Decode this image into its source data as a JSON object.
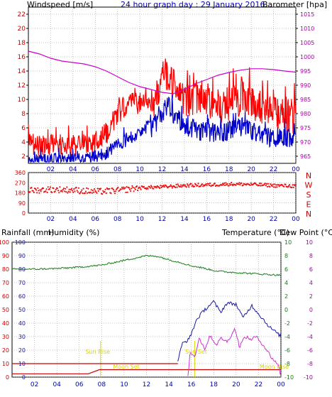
{
  "header": {
    "windspeed_label": "Windspeed [m/s]",
    "title": "24 hour graph day : 29 January 2016",
    "barometer_label": "Barometer [hpa]"
  },
  "colors": {
    "windspeed": "#ff0000",
    "wind_avg": "#0000cc",
    "barometer": "#cc00cc",
    "direction": "#ee1111",
    "humidity": "#1a1aa0",
    "rainfall": "#cc0000",
    "temperature": "#1a7a1a",
    "dew_point": "#cc33cc",
    "sun_marker": "#d8d800",
    "grid": "#888888"
  },
  "chart_data": [
    {
      "type": "line",
      "name": "wind-barometer",
      "x_ticks": [
        "02",
        "04",
        "06",
        "08",
        "10",
        "12",
        "14",
        "16",
        "18",
        "20",
        "22",
        "00"
      ],
      "y_left_label": "Windspeed [m/s]",
      "y_left_ticks": [
        "2",
        "4",
        "6",
        "8",
        "10",
        "12",
        "14",
        "16",
        "18",
        "20",
        "22"
      ],
      "y_left_range": [
        1,
        23
      ],
      "y_right_label": "Barometer [hpa]",
      "y_right_ticks": [
        "965",
        "970",
        "975",
        "980",
        "985",
        "990",
        "995",
        "1000",
        "1005",
        "1010",
        "1015"
      ],
      "y_right_range": [
        962.5,
        1017.5
      ],
      "x_range": [
        0,
        24
      ],
      "gust_envelope": [
        [
          0,
          5.5
        ],
        [
          1,
          5
        ],
        [
          2,
          5
        ],
        [
          3,
          5.3
        ],
        [
          4,
          5
        ],
        [
          5,
          5.2
        ],
        [
          6,
          5.5
        ],
        [
          7,
          6.8
        ],
        [
          8,
          9.8
        ],
        [
          9,
          10.8
        ],
        [
          10,
          11.2
        ],
        [
          11,
          11.8
        ],
        [
          11.8,
          14.5
        ],
        [
          12.3,
          16.5
        ],
        [
          13,
          15
        ],
        [
          14,
          12.6
        ],
        [
          15,
          12.8
        ],
        [
          16,
          12
        ],
        [
          17,
          11.5
        ],
        [
          18,
          12
        ],
        [
          19,
          12.5
        ],
        [
          20,
          12.6
        ],
        [
          21,
          11
        ],
        [
          22,
          10.8
        ],
        [
          23,
          10.5
        ],
        [
          24,
          10
        ]
      ],
      "avg_envelope": [
        [
          0,
          2.3
        ],
        [
          1,
          2.5
        ],
        [
          2,
          2.4
        ],
        [
          3,
          2.5
        ],
        [
          4,
          2.3
        ],
        [
          5,
          2.5
        ],
        [
          6,
          2.9
        ],
        [
          7,
          3.4
        ],
        [
          8,
          4.5
        ],
        [
          9,
          5.3
        ],
        [
          10,
          6.2
        ],
        [
          11,
          7.4
        ],
        [
          12,
          9
        ],
        [
          12.5,
          11
        ],
        [
          13,
          9.5
        ],
        [
          14,
          7.5
        ],
        [
          15,
          7.2
        ],
        [
          16,
          6.8
        ],
        [
          17,
          6.8
        ],
        [
          18,
          7
        ],
        [
          19,
          7.5
        ],
        [
          20,
          7.2
        ],
        [
          21,
          6.2
        ],
        [
          22,
          6
        ],
        [
          23,
          6.2
        ],
        [
          24,
          5.8
        ]
      ],
      "barometer_hpa": [
        [
          0,
          1002
        ],
        [
          1,
          1001
        ],
        [
          2,
          999.5
        ],
        [
          3,
          998.5
        ],
        [
          4,
          998
        ],
        [
          5,
          997.5
        ],
        [
          6,
          996.5
        ],
        [
          7,
          995
        ],
        [
          8,
          993
        ],
        [
          9,
          991
        ],
        [
          10,
          989.5
        ],
        [
          11,
          988.5
        ],
        [
          12,
          987.5
        ],
        [
          13,
          987
        ],
        [
          14,
          988.5
        ],
        [
          15,
          990.5
        ],
        [
          16,
          992
        ],
        [
          17,
          993.5
        ],
        [
          18,
          994.5
        ],
        [
          19,
          995.3
        ],
        [
          20,
          995.8
        ],
        [
          21,
          995.8
        ],
        [
          22,
          995.5
        ],
        [
          23,
          995
        ],
        [
          24,
          994.6
        ]
      ]
    },
    {
      "type": "scatter",
      "name": "wind-direction",
      "x_ticks": [
        "02",
        "04",
        "06",
        "08",
        "10",
        "12",
        "14",
        "16",
        "18",
        "20",
        "22",
        "00"
      ],
      "y_ticks": [
        "0",
        "90",
        "180",
        "270",
        "360"
      ],
      "y_range": [
        0,
        360
      ],
      "y_right_labels": [
        "N",
        "W",
        "S",
        "E",
        "N"
      ],
      "x_range": [
        0,
        24
      ],
      "direction_trend_deg": [
        [
          0,
          200
        ],
        [
          2,
          210
        ],
        [
          4,
          205
        ],
        [
          6,
          190
        ],
        [
          8,
          200
        ],
        [
          10,
          225
        ],
        [
          12,
          232
        ],
        [
          14,
          245
        ],
        [
          16,
          250
        ],
        [
          18,
          258
        ],
        [
          20,
          255
        ],
        [
          22,
          245
        ],
        [
          24,
          240
        ]
      ]
    },
    {
      "type": "line",
      "name": "rain-humidity-temperature",
      "x_ticks": [
        "02",
        "04",
        "06",
        "08",
        "10",
        "12",
        "14",
        "16",
        "18",
        "20",
        "22",
        "00"
      ],
      "rainfall_label": "Rainfall (mm)",
      "humidity_label": "Humidity (%)",
      "temperature_label": "Temperature (°C)",
      "dew_point_label": "Dew Point (°C)",
      "y_left_ticks": [
        "0",
        "10",
        "20",
        "30",
        "40",
        "50",
        "60",
        "70",
        "80",
        "90",
        "100"
      ],
      "y_left_range": [
        0,
        100
      ],
      "y_right_ticks": [
        "-10",
        "-8",
        "-6",
        "-4",
        "-2",
        "0",
        "2",
        "4",
        "6",
        "8",
        "10"
      ],
      "y_right_range": [
        -10,
        10
      ],
      "x_range": [
        0,
        24
      ],
      "temperature_c": [
        [
          0,
          6
        ],
        [
          2,
          6
        ],
        [
          4,
          6.1
        ],
        [
          6,
          6.3
        ],
        [
          8,
          6.6
        ],
        [
          10,
          7.3
        ],
        [
          12,
          8
        ],
        [
          13,
          7.9
        ],
        [
          14,
          7.4
        ],
        [
          15,
          7
        ],
        [
          16,
          6.5
        ],
        [
          17,
          6.2
        ],
        [
          18,
          5.8
        ],
        [
          19,
          5.6
        ],
        [
          20,
          5.5
        ],
        [
          21,
          5.4
        ],
        [
          22,
          5.3
        ],
        [
          23,
          5.2
        ],
        [
          24,
          5.1
        ]
      ],
      "humidity_pct": [
        [
          14.8,
          12
        ],
        [
          15.2,
          25
        ],
        [
          15.8,
          28
        ],
        [
          16.5,
          43
        ],
        [
          17.2,
          50
        ],
        [
          18,
          56
        ],
        [
          18.6,
          48
        ],
        [
          19.2,
          55
        ],
        [
          20,
          54
        ],
        [
          20.6,
          44
        ],
        [
          21.4,
          53
        ],
        [
          22.2,
          45
        ],
        [
          23,
          37
        ],
        [
          23.6,
          33
        ],
        [
          24,
          30
        ]
      ],
      "dew_point_c": [
        [
          15.7,
          -10
        ],
        [
          15.9,
          -6.2
        ],
        [
          16.3,
          -7
        ],
        [
          16.7,
          -4.2
        ],
        [
          17.2,
          -5.8
        ],
        [
          17.7,
          -3.8
        ],
        [
          18.2,
          -5.2
        ],
        [
          18.7,
          -4.2
        ],
        [
          19.2,
          -4.8
        ],
        [
          19.9,
          -2.8
        ],
        [
          20.3,
          -5.5
        ],
        [
          20.8,
          -4
        ],
        [
          21.3,
          -4.4
        ],
        [
          21.8,
          -4
        ],
        [
          22.5,
          -5.4
        ],
        [
          23.2,
          -7.2
        ],
        [
          23.7,
          -8
        ],
        [
          24,
          -9.7
        ]
      ],
      "rain_a_mm": [
        [
          0,
          10
        ],
        [
          14.8,
          10
        ]
      ],
      "rain_b_mm": [
        [
          0,
          2.5
        ],
        [
          6.8,
          2.5
        ],
        [
          7.8,
          5.5
        ],
        [
          24,
          5.5
        ]
      ],
      "sun_rise_label": "Sun Rise",
      "sun_set_label": "Sun Set",
      "moon_rise_label": "Moon Rise",
      "moon_set_label": "Moon Set",
      "sun_rise_hour": 7.9,
      "sun_set_hour": 16.3,
      "moon_set_hour": 10.2,
      "moon_rise_hour": 23.4
    }
  ]
}
